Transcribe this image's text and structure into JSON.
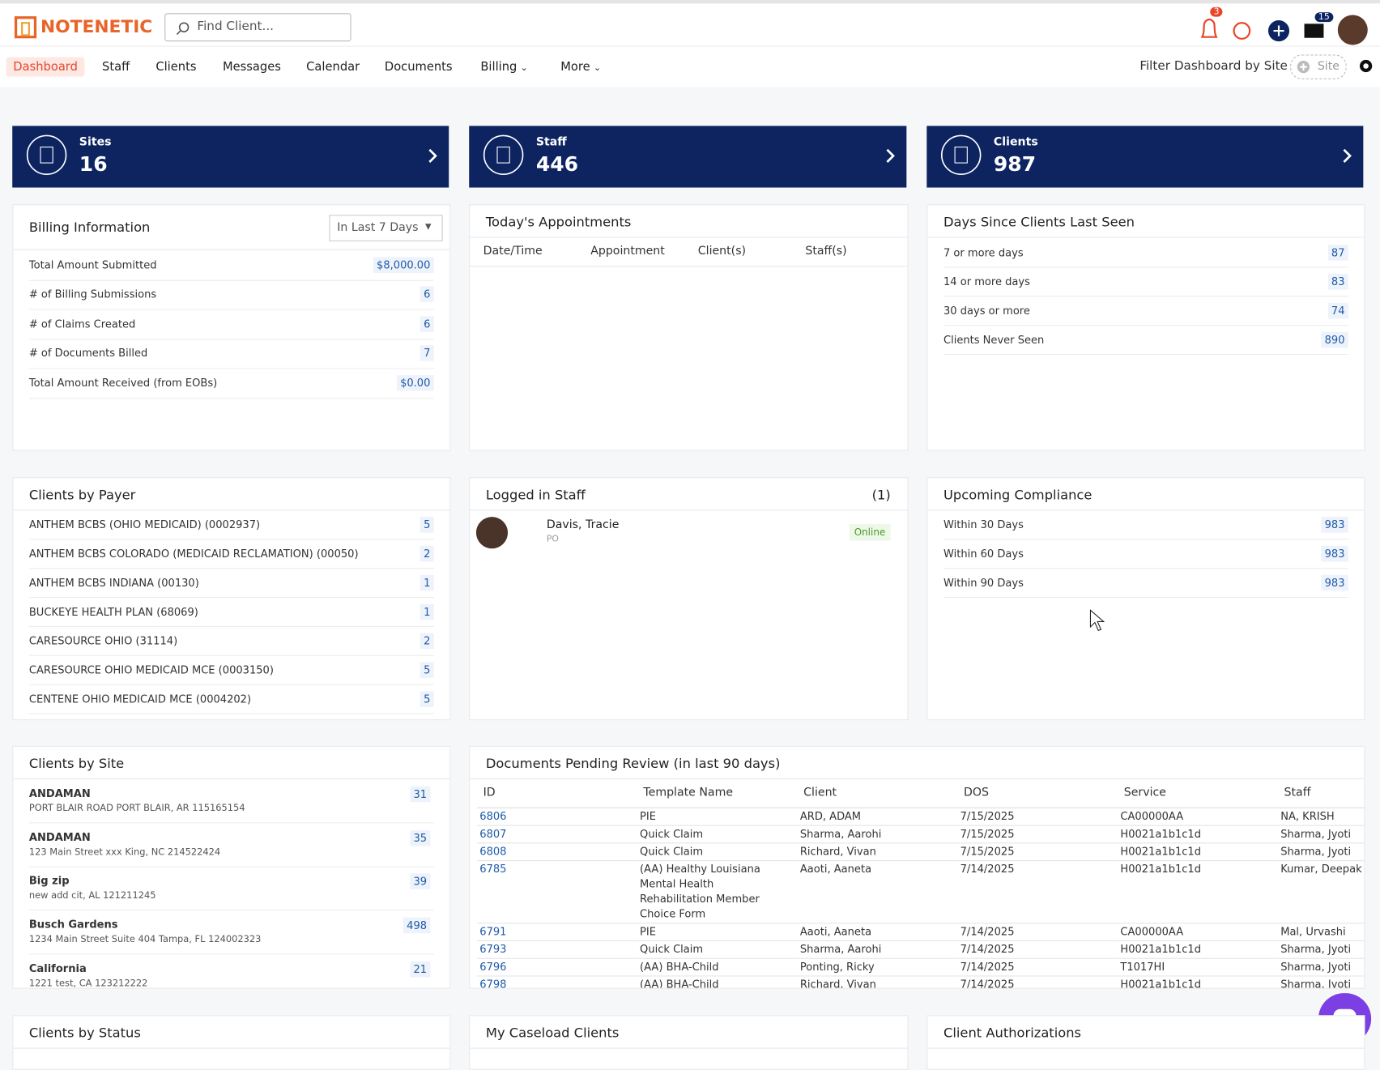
{
  "header": {
    "logo": "NOTENETIC",
    "search_placeholder": "Find Client...",
    "notification_count": "3",
    "mail_count": "15"
  },
  "nav": {
    "items": [
      "Dashboard",
      "Staff",
      "Clients",
      "Messages",
      "Calendar",
      "Documents",
      "Billing",
      "More"
    ],
    "filter_label": "Filter Dashboard by Site",
    "site_button": "Site"
  },
  "summary_cards": [
    {
      "label": "Sites",
      "value": "16"
    },
    {
      "label": "Staff",
      "value": "446"
    },
    {
      "label": "Clients",
      "value": "987"
    }
  ],
  "billing": {
    "title": "Billing Information",
    "dropdown": "In Last 7 Days",
    "rows": [
      [
        "Total Amount Submitted",
        "$8,000.00"
      ],
      [
        "# of Billing Submissions",
        "6"
      ],
      [
        "# of Claims Created",
        "6"
      ],
      [
        "# of Documents Billed",
        "7"
      ],
      [
        "Total Amount Received (from EOBs)",
        "$0.00"
      ]
    ]
  },
  "appointments": {
    "title": "Today's Appointments",
    "columns": [
      "Date/Time",
      "Appointment",
      "Client(s)",
      "Staff(s)"
    ]
  },
  "days_since": {
    "title": "Days Since Clients Last Seen",
    "rows": [
      [
        "7 or more days",
        "87"
      ],
      [
        "14 or more days",
        "83"
      ],
      [
        "30 days or more",
        "74"
      ],
      [
        "Clients Never Seen",
        "890"
      ]
    ]
  },
  "clients_by_payer": {
    "title": "Clients by Payer",
    "rows": [
      [
        "ANTHEM BCBS (OHIO MEDICAID) (0002937)",
        "5"
      ],
      [
        "ANTHEM BCBS COLORADO (MEDICAID RECLAMATION) (00050)",
        "2"
      ],
      [
        "ANTHEM BCBS INDIANA (00130)",
        "1"
      ],
      [
        "BUCKEYE HEALTH PLAN (68069)",
        "1"
      ],
      [
        "CARESOURCE OHIO (31114)",
        "2"
      ],
      [
        "CARESOURCE OHIO MEDICAID MCE (0003150)",
        "5"
      ],
      [
        "CENTENE OHIO MEDICAID MCE (0004202)",
        "5"
      ]
    ]
  },
  "logged_in_staff": {
    "title": "Logged in Staff",
    "count": "(1)",
    "staff": {
      "name": "Davis, Tracie",
      "role": "PO",
      "status": "Online"
    }
  },
  "upcoming_compliance": {
    "title": "Upcoming Compliance",
    "rows": [
      [
        "Within 30 Days",
        "983"
      ],
      [
        "Within 60 Days",
        "983"
      ],
      [
        "Within 90 Days",
        "983"
      ]
    ]
  },
  "clients_by_site": {
    "title": "Clients by Site",
    "rows": [
      {
        "name": "ANDAMAN",
        "address": "PORT BLAIR ROAD PORT BLAIR, AR 115165154",
        "count": "31"
      },
      {
        "name": "ANDAMAN",
        "address": "123 Main Street xxx King, NC 214522424",
        "count": "35"
      },
      {
        "name": "Big zip",
        "address": "new add cit, AL 121211245",
        "count": "39"
      },
      {
        "name": "Busch Gardens",
        "address": "1234 Main Street Suite 404 Tampa, FL 124002323",
        "count": "498"
      },
      {
        "name": "California",
        "address": "1221 test, CA 123212222",
        "count": "21"
      }
    ]
  },
  "documents_pending": {
    "title": "Documents Pending Review (in last 90 days)",
    "columns": [
      "ID",
      "Template Name",
      "Client",
      "DOS",
      "Service",
      "Staff"
    ],
    "rows": [
      [
        "6806",
        "PIE",
        "ARD, ADAM",
        "7/15/2025",
        "CA00000AA",
        "NA, KRISH"
      ],
      [
        "6807",
        "Quick Claim",
        "Sharma, Aarohi",
        "7/15/2025",
        "H0021a1b1c1d",
        "Sharma, Jyoti"
      ],
      [
        "6808",
        "Quick Claim",
        "Richard, Vivan",
        "7/15/2025",
        "H0021a1b1c1d",
        "Sharma, Jyoti"
      ],
      [
        "6785",
        "(AA) Healthy Louisiana Mental Health Rehabilitation Member Choice Form",
        "Aaoti, Aaneta",
        "7/14/2025",
        "H0021a1b1c1d",
        "Kumar, Deepak"
      ],
      [
        "6791",
        "PIE",
        "Aaoti, Aaneta",
        "7/14/2025",
        "CA00000AA",
        "Mal, Urvashi"
      ],
      [
        "6793",
        "Quick Claim",
        "Sharma, Aarohi",
        "7/14/2025",
        "H0021a1b1c1d",
        "Sharma, Jyoti"
      ],
      [
        "6796",
        "(AA) BHA-Child",
        "Ponting, Ricky",
        "7/14/2025",
        "T1017HI",
        "Sharma, Jyoti"
      ],
      [
        "6798",
        "(AA) BHA-Child",
        "Richard, Vivan",
        "7/14/2025",
        "H0021a1b1c1d",
        "Sharma, Jyoti"
      ]
    ]
  },
  "bottom_panels": [
    "Clients by Status",
    "My Caseload Clients",
    "Client Authorizations"
  ]
}
